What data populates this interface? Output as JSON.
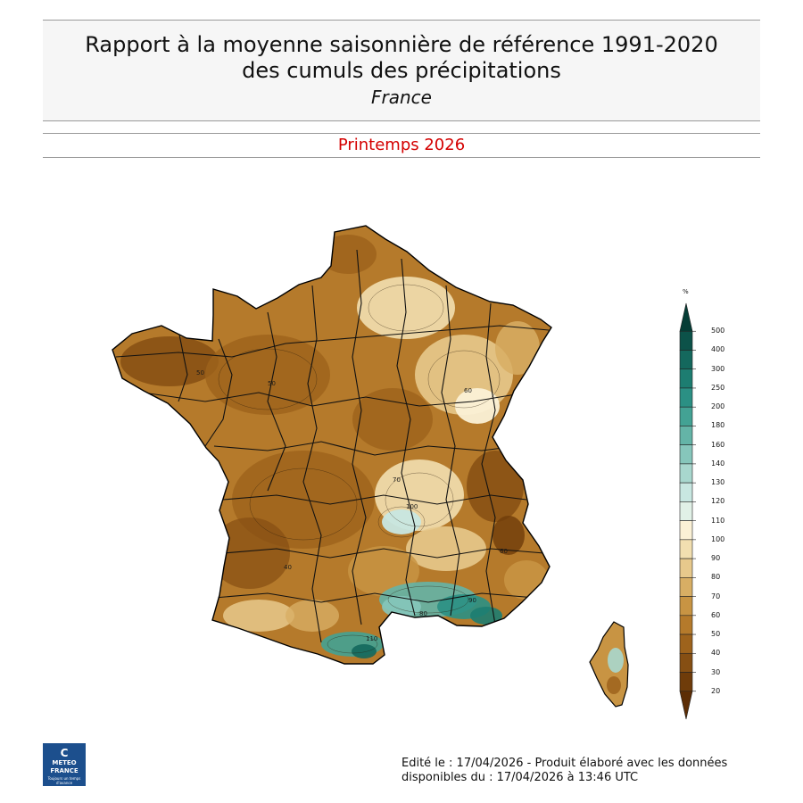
{
  "header": {
    "title_line1": "Rapport à la moyenne saisonnière de référence 1991-2020",
    "title_line2": "des cumuls des précipitations",
    "region": "France",
    "period": "Printemps 2026",
    "period_color": "#d40000"
  },
  "map": {
    "contour_labels": [
      "50",
      "60",
      "40",
      "70",
      "50",
      "110",
      "80",
      "60",
      "100",
      "90"
    ]
  },
  "legend": {
    "unit": "%",
    "ticks": [
      "500",
      "400",
      "300",
      "250",
      "200",
      "180",
      "160",
      "140",
      "130",
      "120",
      "110",
      "100",
      "90",
      "80",
      "70",
      "60",
      "50",
      "40",
      "30",
      "20"
    ],
    "colors": [
      "#053d36",
      "#0c5249",
      "#14685d",
      "#1d7d71",
      "#2b9084",
      "#43a294",
      "#64b4a7",
      "#86c6bb",
      "#a8d7ce",
      "#c8e7e1",
      "#e1f1e7",
      "#fbf1d6",
      "#f2dfb0",
      "#e7c98c",
      "#d8ae64",
      "#c89443",
      "#b57a2b",
      "#9e631c",
      "#864f13",
      "#6f3c0a",
      "#5c2d05"
    ]
  },
  "logo": {
    "mark": "C",
    "line1": "METEO",
    "line2": "FRANCE",
    "tagline": "Toujours un temps d'avance"
  },
  "footer": {
    "line1": "Edité le : 17/04/2026 - Produit élaboré avec les données",
    "line2": "disponibles du : 17/04/2026 à 13:46 UTC"
  }
}
